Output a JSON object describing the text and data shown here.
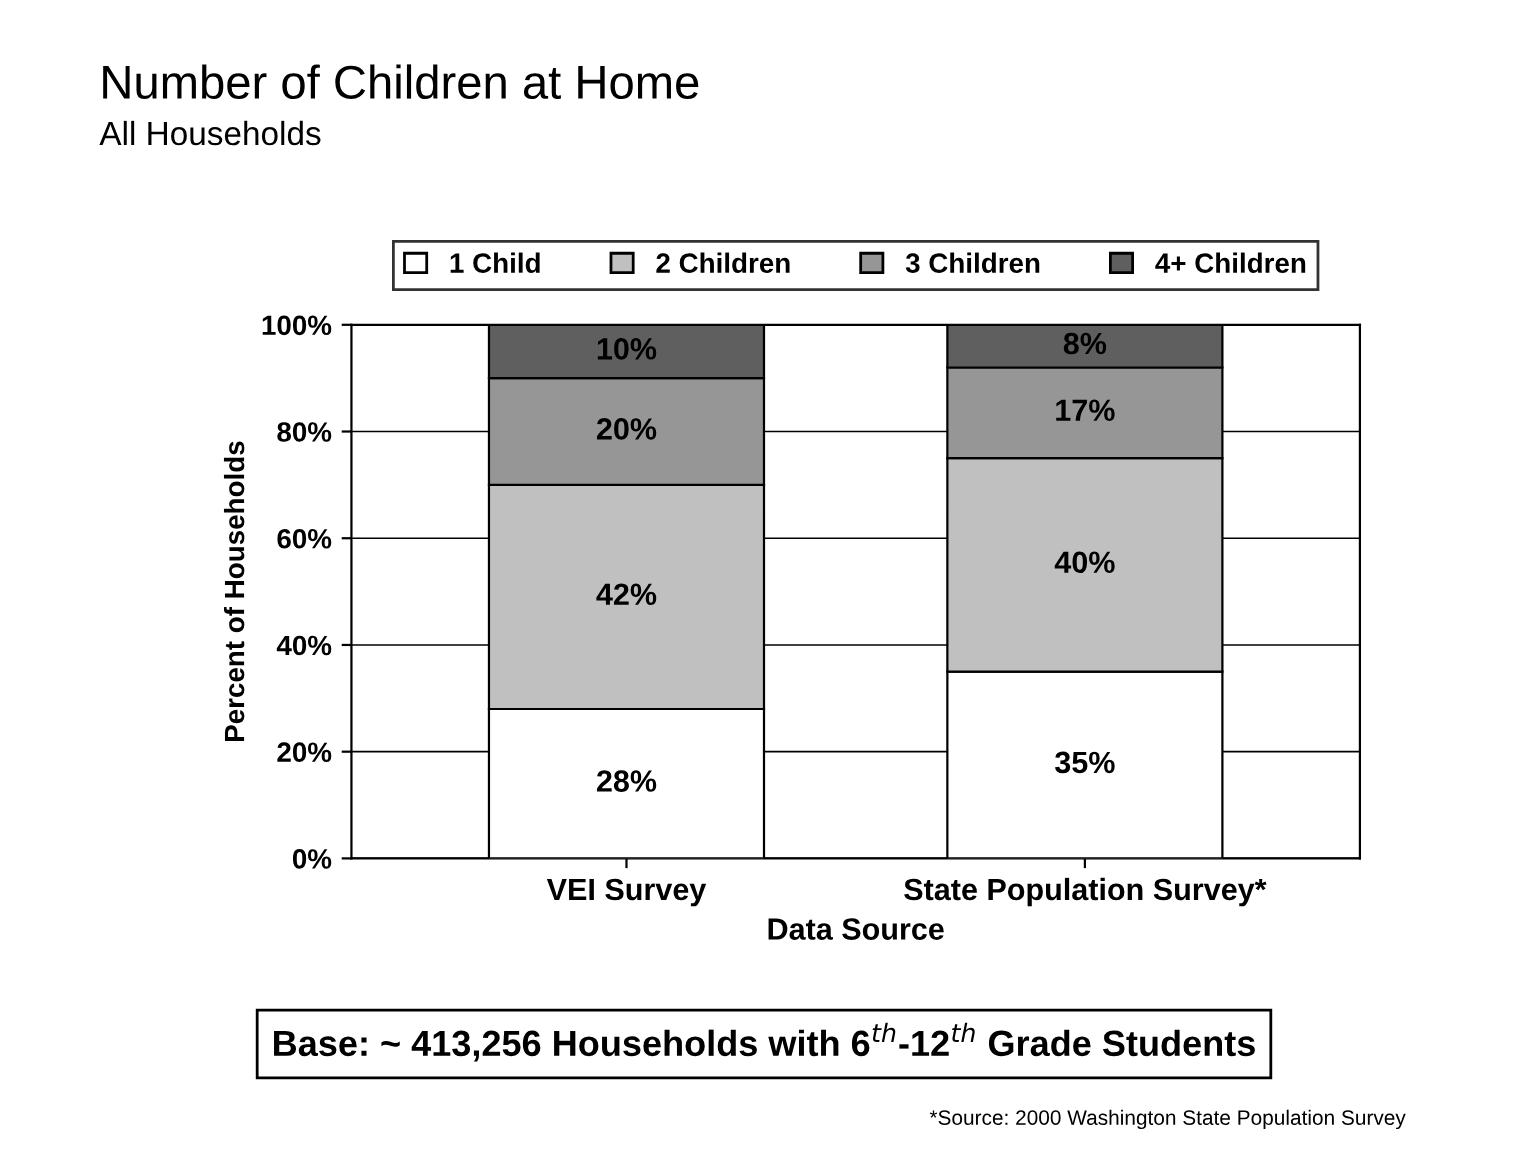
{
  "chart_data": {
    "type": "bar",
    "stacked": true,
    "title": "Number of Children at Home",
    "subtitle": "All Households",
    "xlabel": "Data Source",
    "ylabel": "Percent of Households",
    "categories": [
      "VEI Survey",
      "State Population Survey*"
    ],
    "series": [
      {
        "name": "1 Child",
        "color": "#ffffff",
        "values": [
          28,
          35
        ],
        "value_labels": [
          "28%",
          "35%"
        ]
      },
      {
        "name": "2 Children",
        "color": "#c0c0c0",
        "values": [
          42,
          40
        ],
        "value_labels": [
          "42%",
          "40%"
        ]
      },
      {
        "name": "3 Children",
        "color": "#969696",
        "values": [
          20,
          17
        ],
        "value_labels": [
          "20%",
          "17%"
        ]
      },
      {
        "name": "4+ Children",
        "color": "#5f5f5f",
        "values": [
          10,
          8
        ],
        "value_labels": [
          "10%",
          "8%"
        ]
      }
    ],
    "ylim": [
      0,
      100
    ],
    "yticks": [
      {
        "value": 0,
        "label": "0%"
      },
      {
        "value": 20,
        "label": "20%"
      },
      {
        "value": 40,
        "label": "40%"
      },
      {
        "value": 60,
        "label": "60%"
      },
      {
        "value": 80,
        "label": "80%"
      },
      {
        "value": 100,
        "label": "100%"
      }
    ],
    "grid": "y",
    "legend": "top",
    "annotations": [
      "Base: ~ 413,256 Households with 6$^{th}$-12$^{th}$ Grade Students",
      "*Source: 2000 Washington State Population Survey"
    ]
  }
}
